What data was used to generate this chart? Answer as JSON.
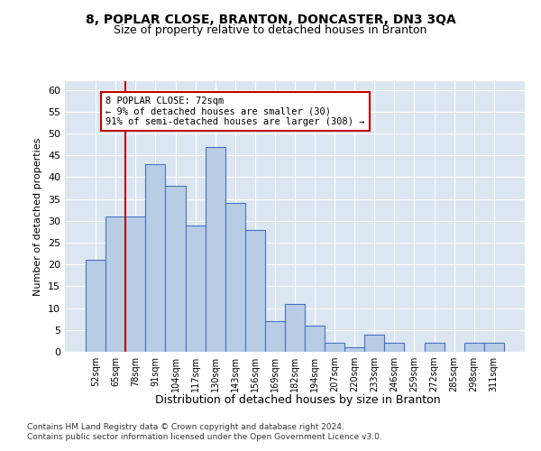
{
  "title1": "8, POPLAR CLOSE, BRANTON, DONCASTER, DN3 3QA",
  "title2": "Size of property relative to detached houses in Branton",
  "xlabel": "Distribution of detached houses by size in Branton",
  "ylabel": "Number of detached properties",
  "categories": [
    "52sqm",
    "65sqm",
    "78sqm",
    "91sqm",
    "104sqm",
    "117sqm",
    "130sqm",
    "143sqm",
    "156sqm",
    "169sqm",
    "182sqm",
    "194sqm",
    "207sqm",
    "220sqm",
    "233sqm",
    "246sqm",
    "259sqm",
    "272sqm",
    "285sqm",
    "298sqm",
    "311sqm"
  ],
  "values": [
    21,
    31,
    31,
    43,
    38,
    29,
    47,
    34,
    28,
    7,
    11,
    6,
    2,
    1,
    4,
    2,
    0,
    2,
    0,
    2,
    2
  ],
  "bar_color": "#b8cce4",
  "bar_edge_color": "#4472c4",
  "bar_linewidth": 0.8,
  "vline_x": 1.5,
  "vline_color": "#c00000",
  "annotation_text": "8 POPLAR CLOSE: 72sqm\n← 9% of detached houses are smaller (30)\n91% of semi-detached houses are larger (308) →",
  "annotation_box_color": "#ffffff",
  "annotation_box_edge": "#c00000",
  "ylim": [
    0,
    62
  ],
  "yticks": [
    0,
    5,
    10,
    15,
    20,
    25,
    30,
    35,
    40,
    45,
    50,
    55,
    60
  ],
  "bg_color": "#dce6f1",
  "grid_color": "#ffffff",
  "footer1": "Contains HM Land Registry data © Crown copyright and database right 2024.",
  "footer2": "Contains public sector information licensed under the Open Government Licence v3.0."
}
